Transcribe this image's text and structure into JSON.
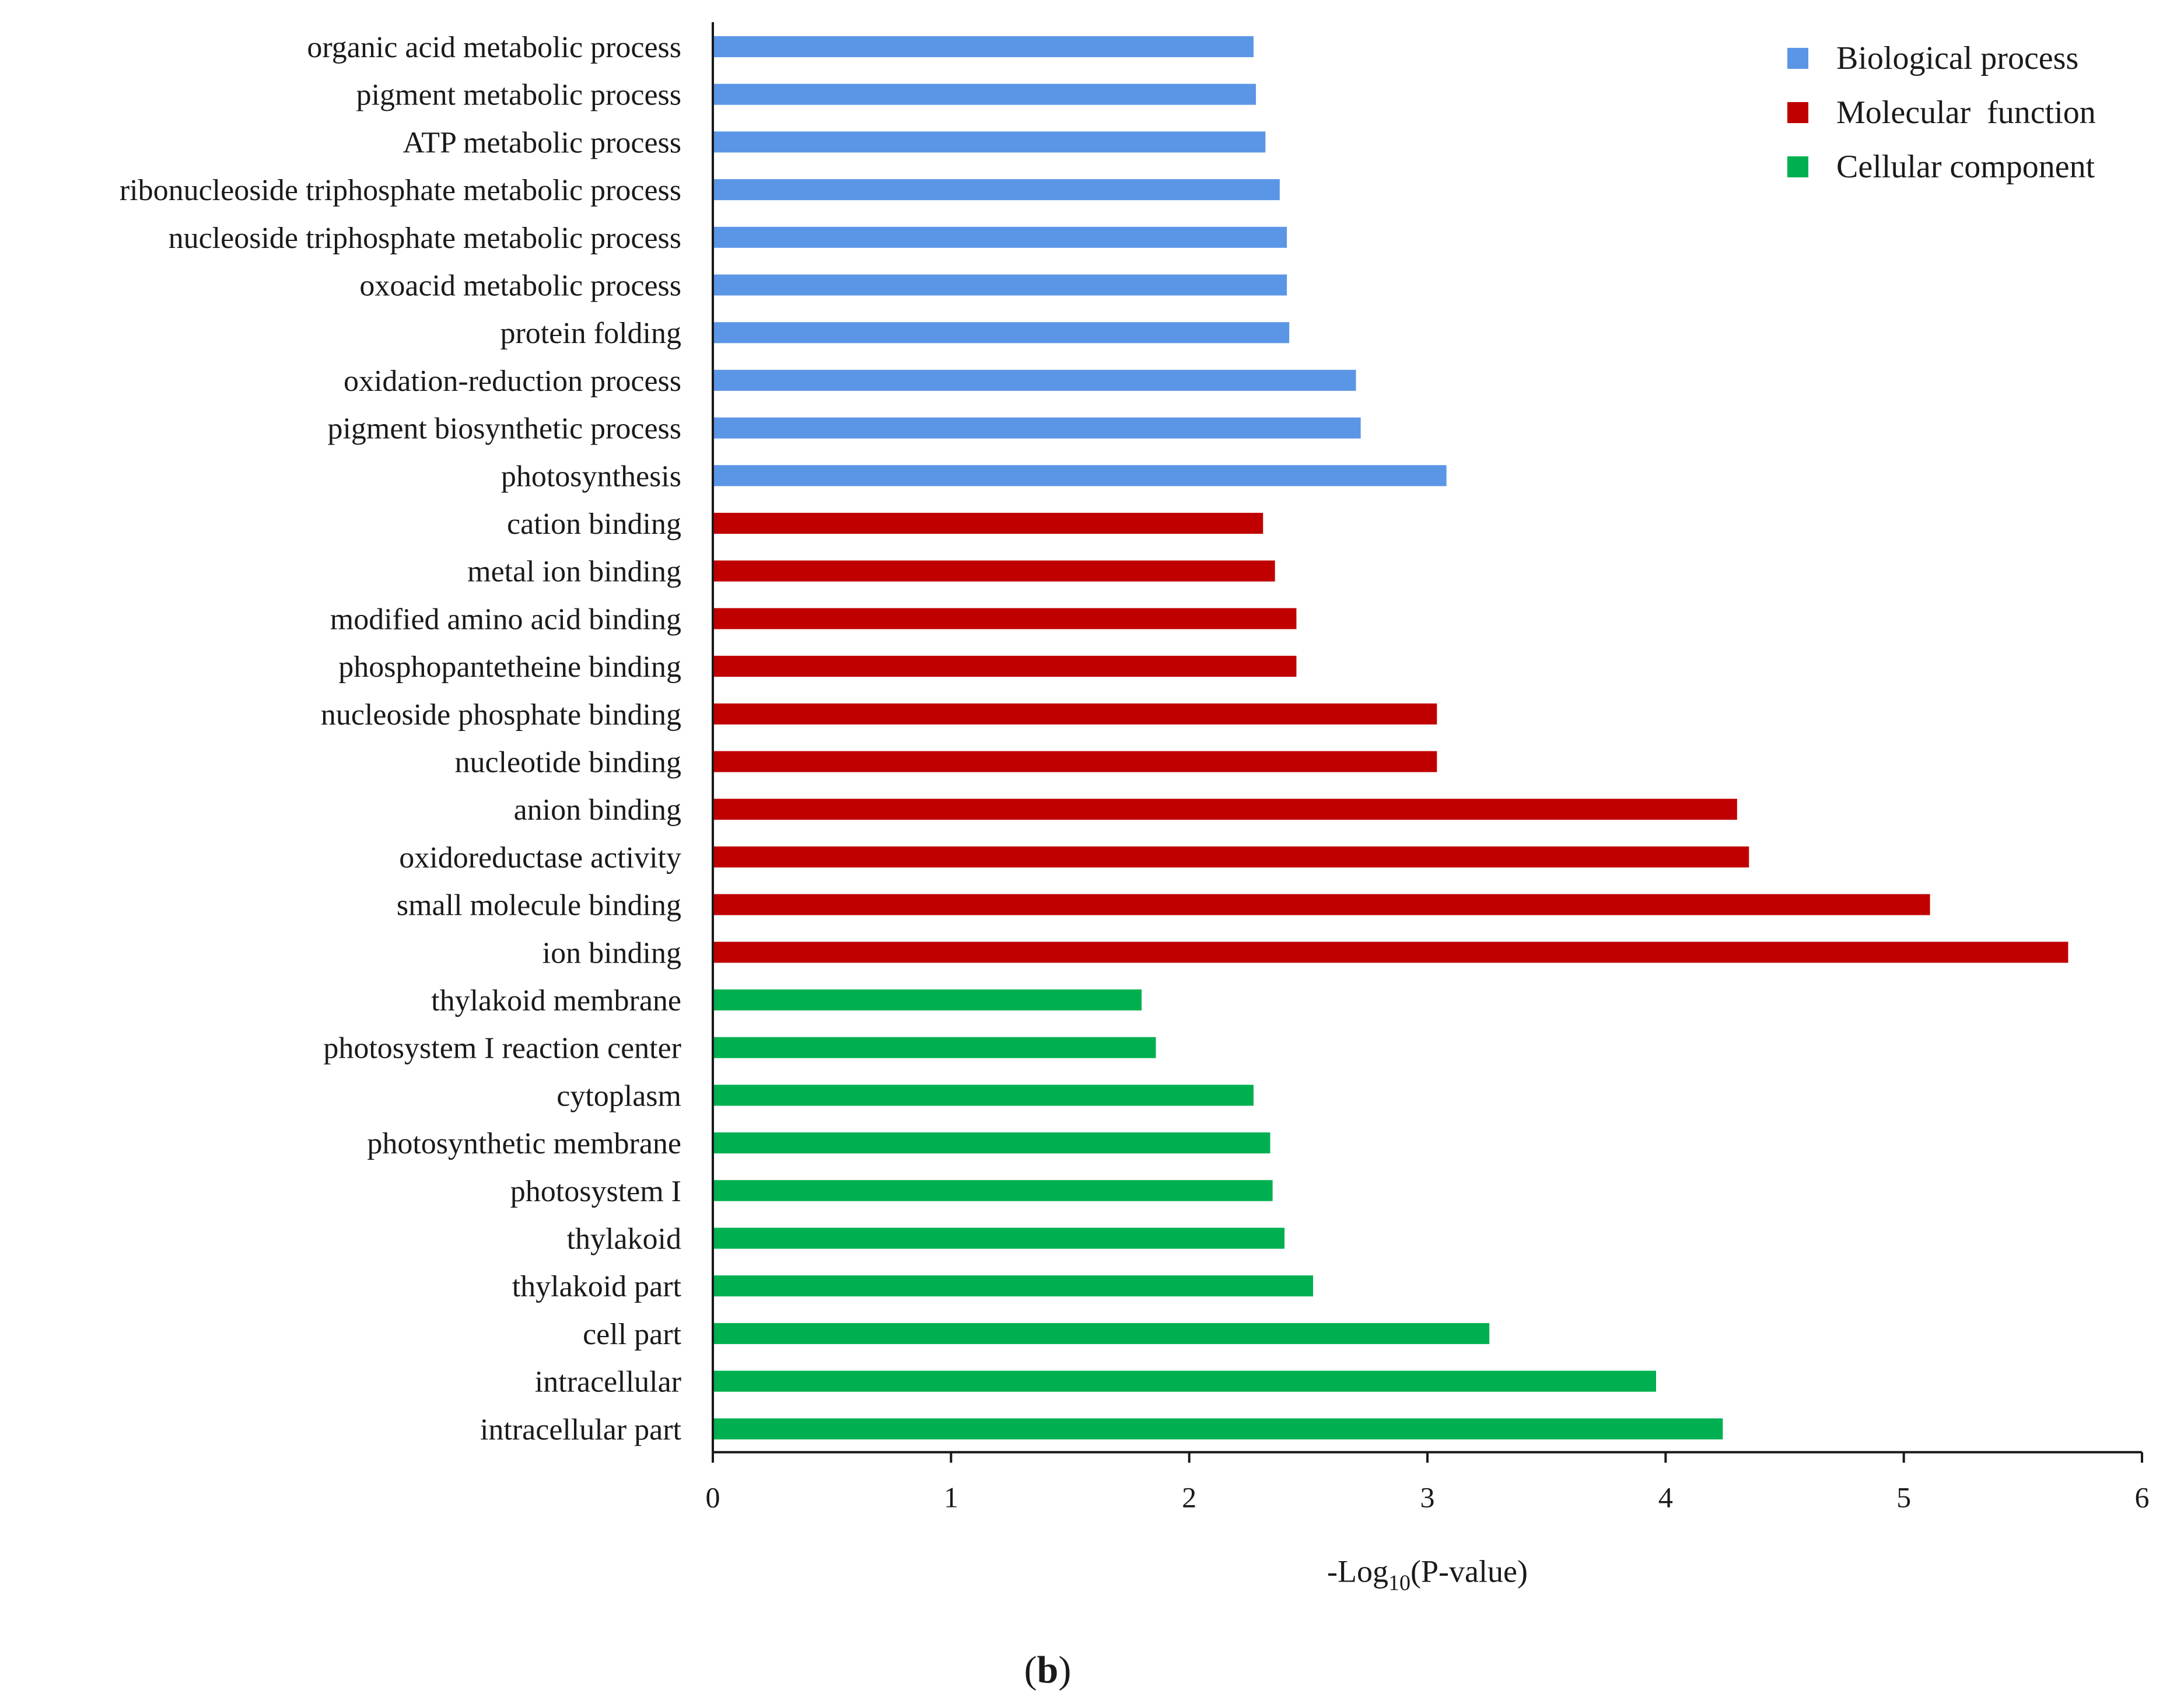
{
  "chart_data": {
    "type": "bar",
    "orientation": "horizontal",
    "title": "",
    "xlabel": "-Log10(P-value)",
    "xlabel_parts": {
      "prefix": "-Log",
      "subscript": "10",
      "suffix": "(P-value)"
    },
    "ylabel": "",
    "xlim": [
      0,
      6
    ],
    "xticks": [
      "0",
      "1",
      "2",
      "3",
      "4",
      "5",
      "6"
    ],
    "grid": false,
    "legend_position": "top-right",
    "panel_label": "b",
    "series": [
      {
        "name": "Biological process",
        "color": "#5b96e6",
        "categories": [
          "organic acid metabolic process",
          "pigment metabolic process",
          "ATP metabolic process",
          "ribonucleoside triphosphate metabolic process",
          "nucleoside triphosphate metabolic process",
          "oxoacid metabolic process",
          "protein folding",
          "oxidation-reduction process",
          "pigment biosynthetic process",
          "photosynthesis"
        ],
        "values": [
          2.27,
          2.28,
          2.32,
          2.38,
          2.41,
          2.41,
          2.42,
          2.7,
          2.72,
          3.08
        ]
      },
      {
        "name": "Molecular  function",
        "color": "#c00000",
        "categories": [
          "cation binding",
          "metal ion binding",
          "modified amino acid binding",
          "phosphopantetheine binding",
          "nucleoside phosphate binding",
          "nucleotide binding",
          "anion binding",
          "oxidoreductase activity",
          "small molecule binding",
          "ion binding"
        ],
        "values": [
          2.31,
          2.36,
          2.45,
          2.45,
          3.04,
          3.04,
          4.3,
          4.35,
          5.11,
          5.69
        ]
      },
      {
        "name": "Cellular component",
        "color": "#00b050",
        "categories": [
          "thylakoid membrane",
          "photosystem I reaction center",
          "cytoplasm",
          "photosynthetic membrane",
          "photosystem I",
          "thylakoid",
          "thylakoid part",
          "cell part",
          "intracellular",
          "intracellular part"
        ],
        "values": [
          1.8,
          1.86,
          2.27,
          2.34,
          2.35,
          2.4,
          2.52,
          3.26,
          3.96,
          4.24
        ]
      }
    ]
  }
}
